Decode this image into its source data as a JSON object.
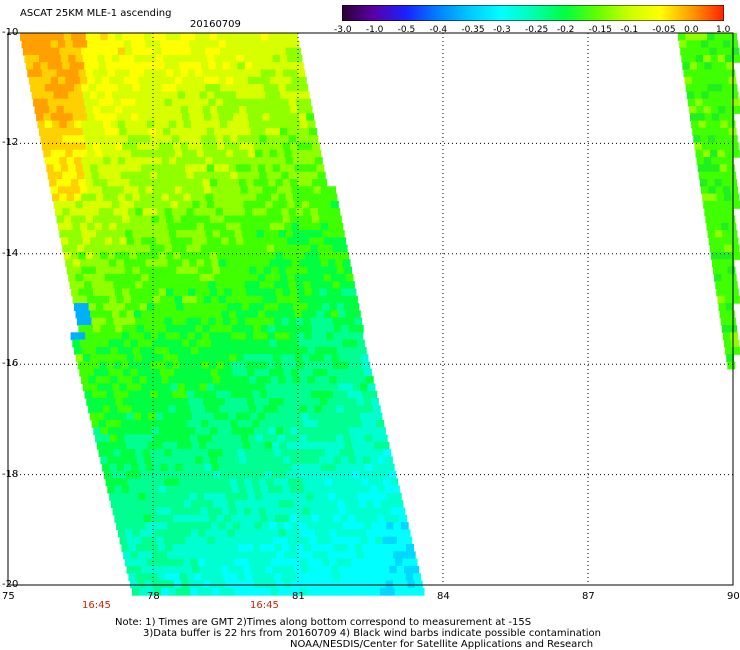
{
  "header": {
    "title": "ASCAT 25KM MLE-1 ascending",
    "date": "20160709"
  },
  "colorbar": {
    "tick_labels": [
      "-3.0",
      "-1.0",
      "-0.5",
      "-0.4",
      "-0.35",
      "-0.3",
      "-0.25",
      "-0.2",
      "-0.15",
      "-0.1",
      "-0.05",
      "0.0",
      "1.0"
    ],
    "colors": [
      "#2a0033",
      "#5a00a8",
      "#1a20ff",
      "#0080ff",
      "#00c8ff",
      "#00ffff",
      "#00ffb0",
      "#00ff40",
      "#60ff00",
      "#c8ff00",
      "#ffff00",
      "#ff9900",
      "#ff2000"
    ]
  },
  "axes": {
    "y_labels": [
      "-10",
      "-12",
      "-14",
      "-16",
      "-18",
      "-20"
    ],
    "x_labels": [
      "75",
      "78",
      "81",
      "84",
      "87",
      "90"
    ],
    "time_labels": [
      "16:45",
      "16:45"
    ],
    "grid": "dotted"
  },
  "notes": {
    "line1": "Note: 1) Times are GMT 2)Times along bottom correspond to measurement at -15S",
    "line2": "3)Data buffer is 22 hrs from 20160709 4) Black wind barbs indicate possible contamination",
    "line3": "NOAA/NESDIS/Center for Satellite Applications and Research"
  }
}
